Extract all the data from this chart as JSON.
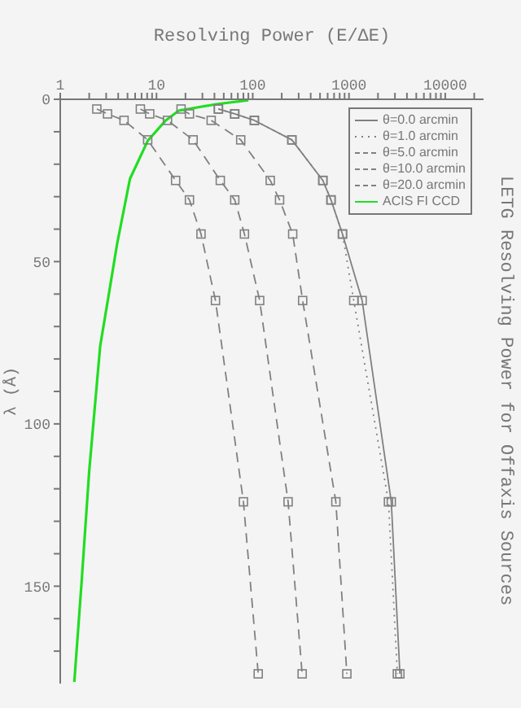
{
  "chart_data": {
    "type": "line",
    "title": "LETG Resolving Power for Offaxis Sources",
    "xlabel": "Resolving Power (E/ΔE)",
    "ylabel": "λ (Å)",
    "ylim": [
      180,
      0
    ],
    "yticks": [
      0,
      {
        "value": 10,
        "label": null
      },
      {
        "value": 20,
        "label": null
      },
      {
        "value": 30,
        "label": null
      },
      {
        "value": 40,
        "label": null
      },
      50,
      {
        "value": 60,
        "label": null
      },
      {
        "value": 70,
        "label": null
      },
      {
        "value": 80,
        "label": null
      },
      {
        "value": 90,
        "label": null
      },
      100,
      {
        "value": 110,
        "label": null
      },
      {
        "value": 120,
        "label": null
      },
      {
        "value": 130,
        "label": null
      },
      {
        "value": 140,
        "label": null
      },
      150,
      {
        "value": 160,
        "label": null
      },
      {
        "value": 170,
        "label": null
      }
    ],
    "xlim": [
      1,
      25000
    ],
    "xticks": [
      1,
      {
        "value": 2,
        "label": null
      },
      {
        "value": 3,
        "label": null
      },
      {
        "value": 4,
        "label": null
      },
      {
        "value": 5,
        "label": null
      },
      {
        "value": 6,
        "label": null
      },
      {
        "value": 7,
        "label": null
      },
      {
        "value": 8,
        "label": null
      },
      {
        "value": 9,
        "label": null
      },
      10,
      {
        "value": 20,
        "label": null
      },
      {
        "value": 30,
        "label": null
      },
      {
        "value": 40,
        "label": null
      },
      {
        "value": 50,
        "label": null
      },
      {
        "value": 60,
        "label": null
      },
      {
        "value": 70,
        "label": null
      },
      {
        "value": 80,
        "label": null
      },
      {
        "value": 90,
        "label": null
      },
      100,
      {
        "value": 200,
        "label": null
      },
      {
        "value": 300,
        "label": null
      },
      {
        "value": 400,
        "label": null
      },
      {
        "value": 500,
        "label": null
      },
      {
        "value": 600,
        "label": null
      },
      {
        "value": 700,
        "label": null
      },
      {
        "value": 800,
        "label": null
      },
      {
        "value": 900,
        "label": null
      },
      1000,
      {
        "value": 2000,
        "label": null
      },
      {
        "value": 3000,
        "label": null
      },
      {
        "value": 4000,
        "label": null
      },
      {
        "value": 5000,
        "label": null
      },
      {
        "value": 6000,
        "label": null
      },
      {
        "value": 7000,
        "label": null
      },
      {
        "value": 8000,
        "label": null
      },
      {
        "value": 9000,
        "label": null
      },
      10000,
      {
        "value": 20000,
        "label": null
      }
    ],
    "log": "x",
    "grid": false,
    "legend": "top right",
    "marker": "square",
    "series": [
      {
        "name": "θ=0.0 arcmin",
        "color": "#808080",
        "line_style": "solid",
        "values": [
          3,
          4.5,
          6.5,
          12.5,
          25,
          31,
          41.5,
          62,
          124,
          177
        ],
        "x": [
          44,
          65,
          104,
          255,
          535,
          650,
          855,
          1370,
          2750,
          3380
        ]
      },
      {
        "name": "θ=1.0 arcmin",
        "color": "#808080",
        "line_style": "dotted",
        "values": [
          3,
          4.5,
          6.5,
          12.5,
          25,
          31,
          41.5,
          62,
          124,
          177
        ],
        "x": [
          44,
          65,
          104,
          255,
          535,
          650,
          855,
          1120,
          2570,
          3180
        ]
      },
      {
        "name": "θ=5.0 arcmin",
        "color": "#808080",
        "line_style": "dashed",
        "values": [
          3,
          4.5,
          6.5,
          12.5,
          25,
          31,
          41.5,
          62,
          124,
          177
        ],
        "x": [
          18,
          22,
          37,
          75,
          152,
          190,
          260,
          330,
          730,
          950
        ]
      },
      {
        "name": "θ=10.0 arcmin",
        "color": "#808080",
        "line_style": "dashed",
        "values": [
          3,
          4.5,
          6.5,
          12.5,
          25,
          31,
          41.5,
          62,
          124,
          177
        ],
        "x": [
          6.8,
          8.5,
          13,
          24,
          46,
          65,
          82,
          118,
          233,
          326
        ]
      },
      {
        "name": "θ=20.0 arcmin",
        "color": "#808080",
        "line_style": "dashed",
        "values": [
          3,
          4.5,
          6.5,
          12.5,
          25,
          31,
          41.5,
          62,
          124,
          177
        ],
        "x": [
          2.4,
          3.1,
          4.6,
          8.1,
          15.8,
          22,
          29,
          41,
          80,
          114
        ]
      },
      {
        "name": "ACIS FI CCD",
        "color": "#22dd22",
        "line_style": "solid",
        "marker": "none",
        "values": [
          0.3,
          1.5,
          3.5,
          6.5,
          12.8,
          24.5,
          44.5,
          60,
          76,
          114.5,
          149.5,
          179.5
        ],
        "x": [
          90,
          42,
          17,
          12.5,
          8.1,
          5.3,
          3.9,
          3.2,
          2.6,
          2.0,
          1.66,
          1.4
        ]
      }
    ]
  }
}
